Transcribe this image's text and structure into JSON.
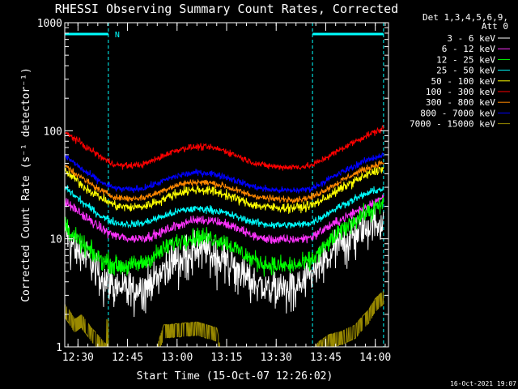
{
  "chart_data": {
    "type": "line",
    "title": "RHESSI Observing Summary Count Rates, Corrected",
    "xlabel": "Start Time (15-Oct-07 12:26:02)",
    "ylabel": "Corrected Count Rate (s⁻¹ detector⁻¹)",
    "y_scale": "log",
    "ylim": [
      1,
      1000
    ],
    "xlim": [
      0,
      98
    ],
    "x_ticks": [
      {
        "t": 4,
        "label": "12:30"
      },
      {
        "t": 19,
        "label": "12:45"
      },
      {
        "t": 34,
        "label": "13:00"
      },
      {
        "t": 49,
        "label": "13:15"
      },
      {
        "t": 64,
        "label": "13:30"
      },
      {
        "t": 79,
        "label": "13:45"
      },
      {
        "t": 94,
        "label": "14:00"
      }
    ],
    "y_ticks": [
      {
        "v": 1,
        "label": "1"
      },
      {
        "v": 10,
        "label": "10"
      },
      {
        "v": 100,
        "label": "100"
      },
      {
        "v": 1000,
        "label": "1000"
      }
    ],
    "legend_header": [
      "Det 1,3,4,5,6,9,",
      "Att 0"
    ],
    "night_markers": [
      {
        "t": 13.2,
        "label": "N"
      },
      {
        "t": 96.5,
        "label": ""
      }
    ],
    "night_bars": [
      [
        0,
        13.2
      ],
      [
        75,
        96.5
      ]
    ],
    "dashed_lines_t": [
      13.2,
      75,
      96.5
    ],
    "timestamp": "16-Oct-2021 19:07",
    "series": [
      {
        "name": "3 - 6 keV",
        "color": "#ffffff",
        "noise": 0.18,
        "x": [
          0,
          2,
          6,
          10,
          13,
          16,
          20,
          24,
          28,
          32,
          36,
          40,
          44,
          48,
          52,
          56,
          60,
          64,
          68,
          72,
          75,
          78,
          82,
          86,
          90,
          94,
          96.5
        ],
        "values": [
          12,
          9,
          7,
          5,
          4,
          3.6,
          3.5,
          3.6,
          4.5,
          6,
          7.5,
          8,
          7.8,
          7,
          5.5,
          4.2,
          3.6,
          3.5,
          3.6,
          3.8,
          4.5,
          6,
          8.5,
          10.5,
          12.5,
          14,
          15
        ]
      },
      {
        "name": "6 - 12 keV",
        "color": "#ff33ff",
        "noise": 0.05,
        "x": [
          0,
          3,
          6,
          10,
          13,
          16,
          20,
          24,
          28,
          32,
          36,
          40,
          44,
          48,
          52,
          56,
          60,
          64,
          68,
          72,
          75,
          78,
          82,
          86,
          90,
          94,
          96.5
        ],
        "values": [
          22,
          19,
          16,
          13,
          11.5,
          10.5,
          10,
          10.2,
          11,
          12.5,
          14,
          15,
          15,
          14,
          12.5,
          11,
          10,
          9.8,
          9.8,
          10,
          10.5,
          12,
          14,
          16.5,
          19,
          22,
          24
        ]
      },
      {
        "name": "12 - 25 keV",
        "color": "#00ff00",
        "noise": 0.1,
        "x": [
          0,
          2,
          5,
          9,
          13,
          16,
          20,
          24,
          28,
          32,
          36,
          40,
          44,
          48,
          52,
          56,
          60,
          64,
          68,
          72,
          75,
          78,
          82,
          86,
          90,
          94,
          96.5
        ],
        "values": [
          14,
          11,
          9,
          7,
          6,
          5.6,
          5.6,
          6,
          7.2,
          8.8,
          10,
          10.5,
          10.3,
          9.5,
          8,
          6.6,
          5.9,
          5.6,
          5.6,
          5.8,
          6.4,
          8,
          10.5,
          13.5,
          16.5,
          19,
          21
        ]
      },
      {
        "name": "25 - 50 keV",
        "color": "#00ffff",
        "noise": 0.04,
        "x": [
          0,
          3,
          6,
          10,
          13,
          16,
          20,
          24,
          28,
          32,
          36,
          40,
          44,
          48,
          52,
          56,
          60,
          64,
          68,
          72,
          75,
          78,
          82,
          86,
          90,
          94,
          96.5
        ],
        "values": [
          30,
          25,
          21,
          17,
          15,
          14,
          13.6,
          14,
          15.5,
          17,
          18.5,
          19,
          18.7,
          17.5,
          16,
          14.6,
          13.7,
          13.4,
          13.4,
          13.6,
          14.2,
          16,
          19,
          22,
          25,
          28,
          29
        ]
      },
      {
        "name": "50 - 100 keV",
        "color": "#ffff00",
        "noise": 0.05,
        "x": [
          0,
          3,
          6,
          10,
          13,
          16,
          20,
          24,
          28,
          32,
          36,
          40,
          44,
          48,
          52,
          56,
          60,
          64,
          68,
          72,
          75,
          78,
          82,
          86,
          90,
          94,
          96.5
        ],
        "values": [
          42,
          36,
          30,
          25,
          22,
          20,
          19.5,
          20,
          22,
          25,
          27.5,
          28.5,
          28,
          26,
          23.5,
          21,
          19.8,
          19.4,
          19.4,
          19.6,
          20.5,
          23,
          27,
          32,
          37,
          42,
          45
        ]
      },
      {
        "name": "100 - 300 keV",
        "color": "#ff0000",
        "noise": 0.035,
        "x": [
          0,
          3,
          6,
          10,
          13,
          16,
          20,
          24,
          28,
          32,
          36,
          40,
          44,
          48,
          52,
          56,
          60,
          64,
          68,
          72,
          75,
          78,
          82,
          86,
          90,
          94,
          96.5
        ],
        "values": [
          95,
          85,
          72,
          60,
          52,
          48,
          47.5,
          49,
          55,
          63,
          69,
          71,
          70,
          66,
          59,
          52,
          48,
          46.5,
          46,
          46.5,
          48,
          54,
          63,
          74,
          86,
          98,
          105
        ]
      },
      {
        "name": "300 - 800 keV",
        "color": "#ff8800",
        "noise": 0.035,
        "x": [
          0,
          3,
          6,
          10,
          13,
          16,
          20,
          24,
          28,
          32,
          36,
          40,
          44,
          48,
          52,
          56,
          60,
          64,
          68,
          72,
          75,
          78,
          82,
          86,
          90,
          94,
          96.5
        ],
        "values": [
          48,
          41,
          35,
          29,
          26,
          24,
          23.5,
          24,
          26.5,
          30,
          32.5,
          33.5,
          33,
          31,
          28,
          25.5,
          24,
          23.3,
          23.2,
          23.4,
          24.5,
          27.5,
          32,
          37.5,
          43,
          48,
          51
        ]
      },
      {
        "name": "800 - 7000 keV",
        "color": "#0000ff",
        "noise": 0.035,
        "x": [
          0,
          3,
          6,
          10,
          13,
          16,
          20,
          24,
          28,
          32,
          36,
          40,
          44,
          48,
          52,
          56,
          60,
          64,
          68,
          72,
          75,
          78,
          82,
          86,
          90,
          94,
          96.5
        ],
        "values": [
          58,
          50,
          42,
          35,
          31,
          29,
          28.5,
          29.5,
          32.5,
          36.5,
          39.5,
          41,
          40.5,
          38,
          34.5,
          31,
          29,
          28.2,
          28,
          28.3,
          29.5,
          33,
          38.5,
          44.5,
          51,
          57,
          60
        ]
      },
      {
        "name": "7000 - 15000 keV",
        "color": "#9a8a00",
        "noise": 0.3,
        "style": "step",
        "x": [
          0,
          3,
          5,
          8,
          10,
          12,
          13.2,
          20,
          28,
          30,
          40,
          46,
          47,
          70,
          75,
          80,
          84,
          88,
          92,
          94,
          96.5
        ],
        "values": [
          2.5,
          1.8,
          2,
          1.5,
          1.3,
          1.1,
          1,
          1,
          1,
          1.6,
          1.7,
          1.5,
          1,
          1,
          1,
          1.3,
          1.4,
          1.6,
          2.2,
          2.8,
          3.3
        ]
      }
    ]
  }
}
